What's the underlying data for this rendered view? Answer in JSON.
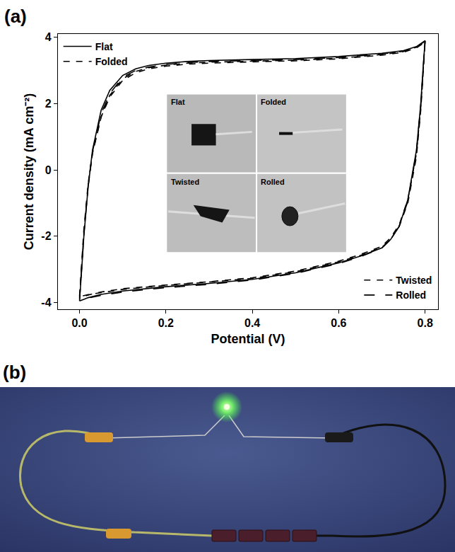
{
  "chart_data": {
    "type": "line",
    "panel_labels": [
      "(a)",
      "(b)"
    ],
    "x_label": "Potential (V)",
    "y_label": "Current density (mA cm⁻²)",
    "xlim": [
      -0.05,
      0.83
    ],
    "xticks": [
      {
        "value": 0,
        "label": "0.0"
      },
      0.2,
      0.4,
      0.6,
      0.8
    ],
    "ylim": [
      -4.2,
      4.1
    ],
    "yticks": [
      -4,
      -2,
      0,
      2,
      4
    ],
    "grid": false,
    "inset_labels": [
      "Flat",
      "Folded",
      "Twisted",
      "Rolled"
    ],
    "series": [
      {
        "name": "Flat",
        "color": "#000000",
        "line_style": "solid",
        "legend": "top-left",
        "x": [
          0,
          0.005,
          0.01,
          0.02,
          0.03,
          0.05,
          0.07,
          0.1,
          0.13,
          0.16,
          0.2,
          0.25,
          0.3,
          0.4,
          0.5,
          0.6,
          0.7,
          0.75,
          0.78,
          0.8,
          0.8,
          0.795,
          0.79,
          0.78,
          0.76,
          0.74,
          0.72,
          0.7,
          0.65,
          0.6,
          0.5,
          0.4,
          0.3,
          0.2,
          0.1,
          0.05,
          0.02,
          0.01,
          0
        ],
        "values": [
          -3.95,
          -3.0,
          -2.0,
          -0.5,
          0.6,
          1.8,
          2.4,
          2.85,
          3.05,
          3.15,
          3.22,
          3.27,
          3.3,
          3.33,
          3.36,
          3.42,
          3.52,
          3.6,
          3.72,
          3.9,
          3.9,
          3.0,
          2.0,
          0.6,
          -0.9,
          -1.7,
          -2.1,
          -2.35,
          -2.6,
          -2.8,
          -3.1,
          -3.3,
          -3.42,
          -3.52,
          -3.65,
          -3.75,
          -3.85,
          -3.9,
          -3.95
        ]
      },
      {
        "name": "Folded",
        "color": "#000000",
        "line_style": "dash",
        "legend": "top-left",
        "x": [
          0,
          0.005,
          0.01,
          0.02,
          0.03,
          0.05,
          0.07,
          0.1,
          0.13,
          0.16,
          0.2,
          0.25,
          0.3,
          0.4,
          0.5,
          0.6,
          0.7,
          0.75,
          0.78,
          0.8,
          0.8,
          0.795,
          0.79,
          0.78,
          0.76,
          0.74,
          0.72,
          0.7,
          0.65,
          0.6,
          0.5,
          0.4,
          0.3,
          0.2,
          0.1,
          0.05,
          0.02,
          0.01,
          0
        ],
        "values": [
          -3.85,
          -2.9,
          -1.9,
          -0.5,
          0.5,
          1.6,
          2.25,
          2.75,
          2.97,
          3.08,
          3.16,
          3.22,
          3.25,
          3.28,
          3.31,
          3.37,
          3.48,
          3.57,
          3.7,
          3.88,
          3.88,
          2.9,
          1.9,
          0.5,
          -0.9,
          -1.65,
          -2.05,
          -2.3,
          -2.55,
          -2.75,
          -3.05,
          -3.25,
          -3.37,
          -3.47,
          -3.58,
          -3.68,
          -3.77,
          -3.82,
          -3.85
        ]
      },
      {
        "name": "Twisted",
        "color": "#000000",
        "line_style": "dash",
        "legend": "bottom-right",
        "x": [
          0,
          0.005,
          0.01,
          0.02,
          0.03,
          0.05,
          0.07,
          0.1,
          0.13,
          0.16,
          0.2,
          0.25,
          0.3,
          0.4,
          0.5,
          0.6,
          0.7,
          0.75,
          0.78,
          0.8,
          0.8,
          0.795,
          0.79,
          0.78,
          0.76,
          0.74,
          0.72,
          0.7,
          0.65,
          0.6,
          0.5,
          0.4,
          0.3,
          0.2,
          0.1,
          0.05,
          0.02,
          0.01,
          0
        ],
        "values": [
          -3.8,
          -2.8,
          -1.8,
          -0.4,
          0.5,
          1.6,
          2.2,
          2.7,
          2.93,
          3.05,
          3.13,
          3.19,
          3.22,
          3.26,
          3.29,
          3.35,
          3.46,
          3.55,
          3.68,
          3.85,
          3.85,
          2.8,
          1.8,
          0.4,
          -1.0,
          -1.7,
          -2.1,
          -2.33,
          -2.58,
          -2.77,
          -3.07,
          -3.27,
          -3.38,
          -3.48,
          -3.6,
          -3.7,
          -3.76,
          -3.79,
          -3.8
        ]
      },
      {
        "name": "Rolled",
        "color": "#000000",
        "line_style": "longdash",
        "legend": "bottom-right",
        "x": [
          0,
          0.005,
          0.01,
          0.02,
          0.03,
          0.05,
          0.07,
          0.1,
          0.13,
          0.16,
          0.2,
          0.25,
          0.3,
          0.4,
          0.5,
          0.6,
          0.7,
          0.75,
          0.78,
          0.8,
          0.8,
          0.795,
          0.79,
          0.78,
          0.76,
          0.74,
          0.72,
          0.7,
          0.65,
          0.6,
          0.5,
          0.4,
          0.3,
          0.2,
          0.1,
          0.05,
          0.02,
          0.01,
          0
        ],
        "values": [
          -3.9,
          -2.95,
          -1.95,
          -0.45,
          0.55,
          1.7,
          2.3,
          2.8,
          3.0,
          3.1,
          3.18,
          3.24,
          3.27,
          3.3,
          3.33,
          3.39,
          3.5,
          3.58,
          3.71,
          3.88,
          3.88,
          2.95,
          1.95,
          0.55,
          -0.95,
          -1.7,
          -2.1,
          -2.35,
          -2.62,
          -2.82,
          -3.12,
          -3.32,
          -3.45,
          -3.55,
          -3.68,
          -3.78,
          -3.86,
          -3.89,
          -3.9
        ]
      }
    ]
  }
}
